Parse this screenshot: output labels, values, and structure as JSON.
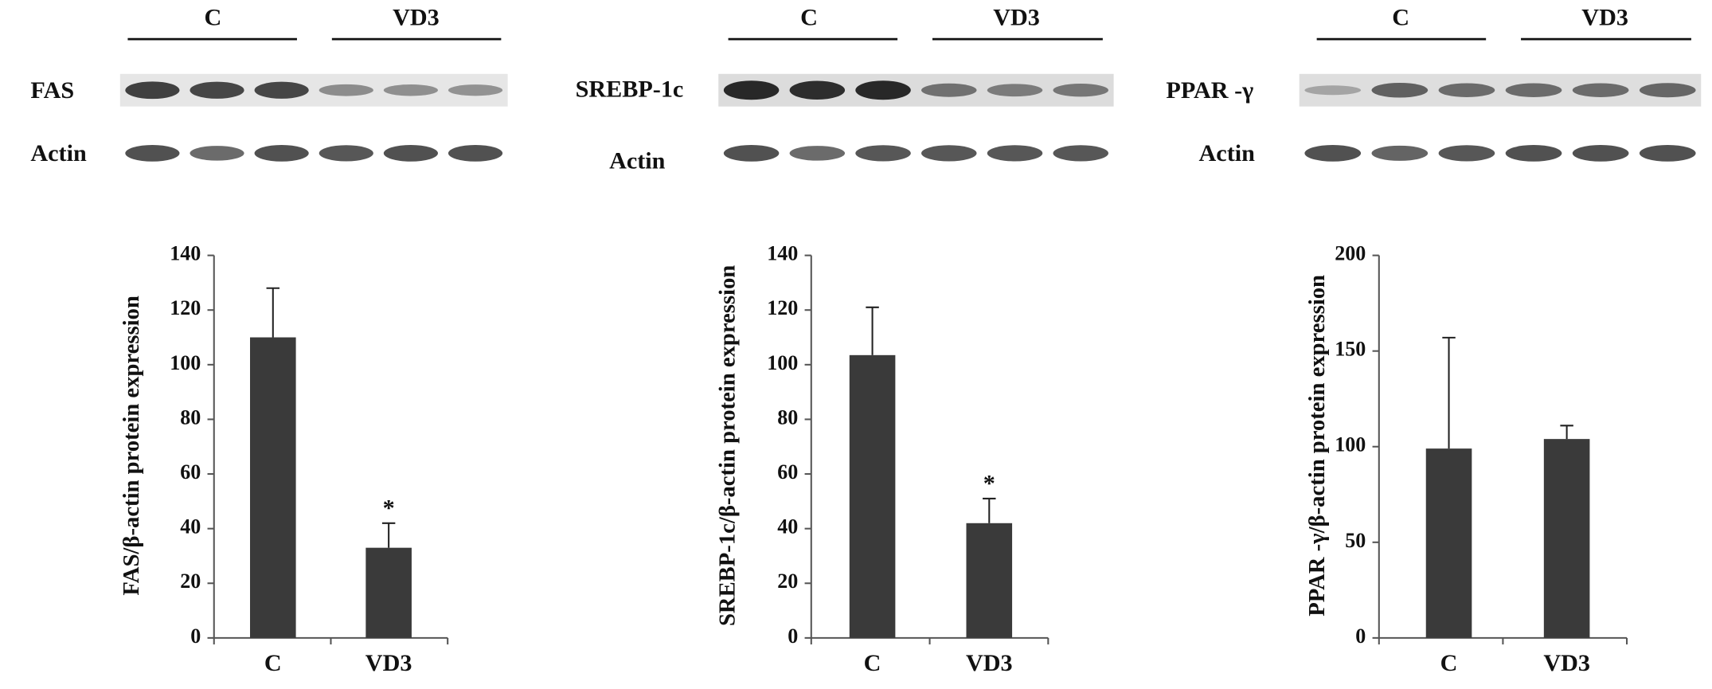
{
  "chart_data": [
    {
      "type": "bar",
      "ylabel": "FAS/β-actin protein expression",
      "categories": [
        "C",
        "VD3"
      ],
      "values": [
        110,
        33
      ],
      "errors": [
        18,
        9
      ],
      "markers": [
        null,
        "*"
      ],
      "color": "#3a3a3a",
      "ylim": [
        0,
        140
      ],
      "yticks": [
        0,
        20,
        40,
        60,
        80,
        100,
        120,
        140
      ]
    },
    {
      "type": "bar",
      "ylabel": "SREBP-1c/β-actin protein expression",
      "categories": [
        "C",
        "VD3"
      ],
      "values": [
        103.5,
        42
      ],
      "errors": [
        17.5,
        9
      ],
      "markers": [
        null,
        "*"
      ],
      "color": "#3a3a3a",
      "ylim": [
        0,
        140
      ],
      "yticks": [
        0,
        20,
        40,
        60,
        80,
        100,
        120,
        140
      ]
    },
    {
      "type": "bar",
      "ylabel": "PPAR -γ/β-actin protein expression",
      "categories": [
        "C",
        "VD3"
      ],
      "values": [
        99,
        104
      ],
      "errors": [
        58,
        7
      ],
      "markers": [
        null,
        null
      ],
      "color": "#3a3a3a",
      "ylim": [
        0,
        200
      ],
      "yticks": [
        0,
        50,
        100,
        150,
        200
      ]
    }
  ],
  "blots": [
    {
      "groups": [
        "C",
        "VD3"
      ],
      "rows": [
        "FAS",
        "Actin"
      ]
    },
    {
      "groups": [
        "C",
        "VD3"
      ],
      "rows": [
        "SREBP-1c",
        "Actin"
      ]
    },
    {
      "groups": [
        "C",
        "VD3"
      ],
      "rows": [
        "PPAR -γ",
        "Actin"
      ]
    }
  ]
}
